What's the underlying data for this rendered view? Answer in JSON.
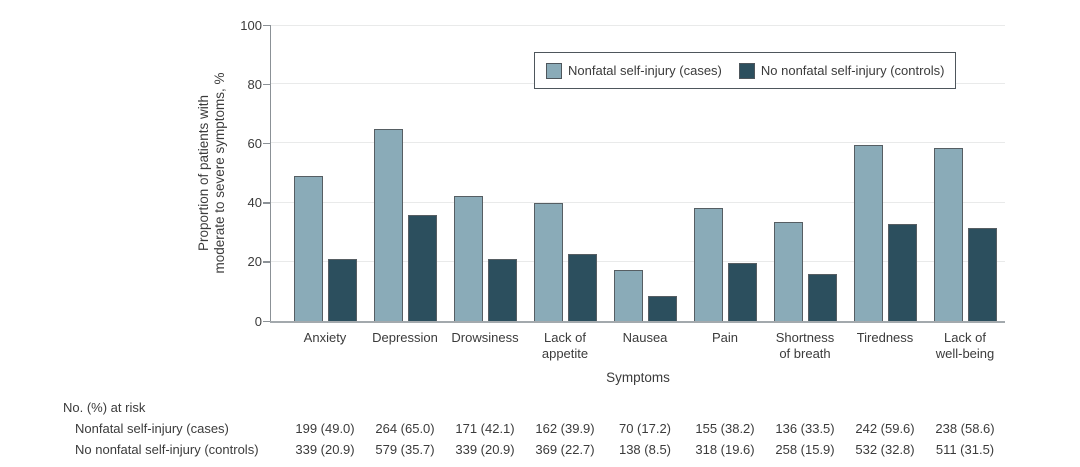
{
  "chart_data": {
    "type": "bar",
    "title": "",
    "categories": [
      "Anxiety",
      "Depression",
      "Drowsiness",
      "Lack of\nappetite",
      "Nausea",
      "Pain",
      "Shortness\nof breath",
      "Tiredness",
      "Lack of\nwell-being"
    ],
    "series": [
      {
        "name": "Nonfatal self-injury (cases)",
        "color": "#8aabb8",
        "values": [
          49.0,
          65.0,
          42.1,
          39.9,
          17.2,
          38.2,
          33.5,
          59.6,
          58.6
        ]
      },
      {
        "name": "No nonfatal self-injury (controls)",
        "color": "#2c4f5e",
        "values": [
          20.9,
          35.7,
          20.9,
          22.7,
          8.5,
          19.6,
          15.9,
          32.8,
          31.5
        ]
      }
    ],
    "xlabel": "Symptoms",
    "ylabel": "Proportion of patients with\nmoderate to severe symptoms, %",
    "ylim": [
      0,
      100
    ],
    "yticks": [
      0,
      20,
      40,
      60,
      80,
      100
    ],
    "grid": true,
    "legend_position": "top-right"
  },
  "risk_table": {
    "header": "No. (%) at risk",
    "rows": [
      {
        "label": "Nonfatal self-injury (cases)",
        "values": [
          "199 (49.0)",
          "264 (65.0)",
          "171 (42.1)",
          "162 (39.9)",
          "70 (17.2)",
          "155 (38.2)",
          "136 (33.5)",
          "242 (59.6)",
          "238 (58.6)"
        ]
      },
      {
        "label": "No nonfatal self-injury (controls)",
        "values": [
          "339 (20.9)",
          "579 (35.7)",
          "339 (20.9)",
          "369 (22.7)",
          "138 (8.5)",
          "318 (19.6)",
          "258 (15.9)",
          "532 (32.8)",
          "511 (31.5)"
        ]
      }
    ]
  },
  "colors": {
    "cases_fill": "#8aabb8",
    "controls_fill": "#2c4f5e",
    "bar_border": "#565e63",
    "axis": "#8b9196",
    "gridline": "#e9eaea",
    "text": "#3b3b3b"
  }
}
